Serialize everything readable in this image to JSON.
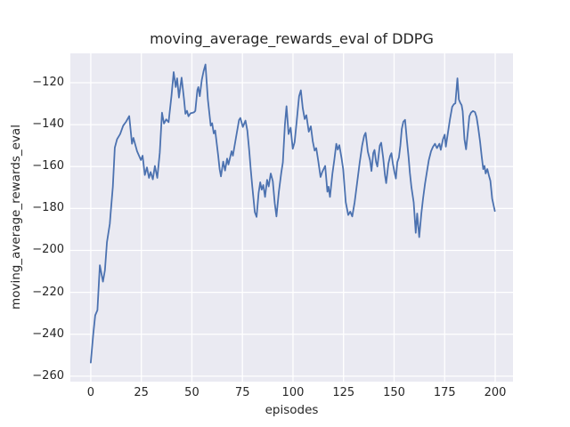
{
  "figure": {
    "title": "moving_average_rewards_eval of DDPG",
    "xlabel": "episodes",
    "ylabel": "moving_average_rewards_eval"
  },
  "colors": {
    "figure_bg": "#ffffff",
    "axes_bg": "#eaeaf2",
    "grid": "#ffffff",
    "text": "#262626",
    "line": "#4c72b0"
  },
  "chart_data": {
    "type": "line",
    "title": "moving_average_rewards_eval of DDPG",
    "xlabel": "episodes",
    "ylabel": "moving_average_rewards_eval",
    "xlim": [
      -10.1,
      208.8
    ],
    "ylim": [
      -262.6,
      -106.0
    ],
    "x_ticks": [
      0,
      25,
      50,
      75,
      100,
      125,
      150,
      175,
      200
    ],
    "y_ticks": [
      -260,
      -240,
      -220,
      -200,
      -180,
      -160,
      -140,
      -120
    ],
    "grid": true,
    "legend": false,
    "series": [
      {
        "name": "moving_average_rewards_eval",
        "color": "#4c72b0",
        "points": [
          [
            0,
            -253.5
          ],
          [
            1.2,
            -240
          ],
          [
            2.2,
            -231
          ],
          [
            3.3,
            -228.5
          ],
          [
            4.5,
            -207.1
          ],
          [
            6,
            -214.9
          ],
          [
            7,
            -209.5
          ],
          [
            8,
            -196
          ],
          [
            9.4,
            -187.3
          ],
          [
            9.8,
            -182.4
          ],
          [
            10.9,
            -169.6
          ],
          [
            11.9,
            -151
          ],
          [
            13,
            -147
          ],
          [
            14.5,
            -144.5
          ],
          [
            16,
            -140.5
          ],
          [
            17.5,
            -138.5
          ],
          [
            19,
            -135.9
          ],
          [
            20.4,
            -149.1
          ],
          [
            21.1,
            -146.3
          ],
          [
            22.9,
            -152.7
          ],
          [
            24.8,
            -156.9
          ],
          [
            25.6,
            -154.8
          ],
          [
            26.7,
            -164
          ],
          [
            27.8,
            -160.4
          ],
          [
            28.8,
            -165.4
          ],
          [
            29.6,
            -162.6
          ],
          [
            30.7,
            -166.1
          ],
          [
            31.7,
            -159.7
          ],
          [
            32.9,
            -165.4
          ],
          [
            34.1,
            -153.4
          ],
          [
            35.2,
            -134.3
          ],
          [
            36.2,
            -139.5
          ],
          [
            37.3,
            -137.5
          ],
          [
            38.5,
            -138.8
          ],
          [
            39.9,
            -126.4
          ],
          [
            41,
            -114.9
          ],
          [
            42,
            -122.1
          ],
          [
            42.7,
            -117.9
          ],
          [
            43.6,
            -127.1
          ],
          [
            44.9,
            -117.6
          ],
          [
            46.1,
            -127.8
          ],
          [
            46.8,
            -134.8
          ],
          [
            47.6,
            -133.4
          ],
          [
            48.3,
            -136
          ],
          [
            49.3,
            -134.6
          ],
          [
            51,
            -134.2
          ],
          [
            51.7,
            -133.4
          ],
          [
            52.7,
            -123.5
          ],
          [
            53.2,
            -122.1
          ],
          [
            53.9,
            -126.4
          ],
          [
            54.9,
            -118.6
          ],
          [
            55.8,
            -114.5
          ],
          [
            56.7,
            -111.3
          ],
          [
            57.9,
            -128
          ],
          [
            59.3,
            -140.5
          ],
          [
            60,
            -139.3
          ],
          [
            60.8,
            -144.2
          ],
          [
            61.5,
            -142.8
          ],
          [
            63,
            -154.8
          ],
          [
            63.7,
            -161.2
          ],
          [
            64.4,
            -164.7
          ],
          [
            65.5,
            -157.6
          ],
          [
            66.4,
            -161.9
          ],
          [
            67.4,
            -156.2
          ],
          [
            68.1,
            -159
          ],
          [
            69.6,
            -152.7
          ],
          [
            70.3,
            -154.8
          ],
          [
            71.8,
            -146.3
          ],
          [
            73.3,
            -137.8
          ],
          [
            74,
            -136.8
          ],
          [
            75.2,
            -141.1
          ],
          [
            76.5,
            -138.1
          ],
          [
            77.4,
            -142.8
          ],
          [
            78.4,
            -152.7
          ],
          [
            79.1,
            -161.2
          ],
          [
            79.9,
            -169.6
          ],
          [
            81.1,
            -181.7
          ],
          [
            82,
            -184
          ],
          [
            83,
            -172.5
          ],
          [
            83.8,
            -167.5
          ],
          [
            84.5,
            -171
          ],
          [
            85.3,
            -168.8
          ],
          [
            86.2,
            -174.5
          ],
          [
            87.2,
            -166.3
          ],
          [
            88,
            -169.5
          ],
          [
            89,
            -163.3
          ],
          [
            90,
            -167
          ],
          [
            91,
            -177.5
          ],
          [
            91.8,
            -183.8
          ],
          [
            93,
            -172
          ],
          [
            94.2,
            -163
          ],
          [
            95,
            -158
          ],
          [
            96,
            -140
          ],
          [
            96.8,
            -131.2
          ],
          [
            97.8,
            -144.5
          ],
          [
            98.8,
            -141.5
          ],
          [
            99.9,
            -151.5
          ],
          [
            100.8,
            -148.3
          ],
          [
            101.8,
            -138.5
          ],
          [
            103,
            -126.5
          ],
          [
            103.9,
            -123.6
          ],
          [
            104.8,
            -132
          ],
          [
            105.8,
            -137.3
          ],
          [
            106.6,
            -135.5
          ],
          [
            107.8,
            -143.4
          ],
          [
            108.8,
            -140.8
          ],
          [
            109.8,
            -148
          ],
          [
            110.7,
            -152.4
          ],
          [
            111.5,
            -151.2
          ],
          [
            112.5,
            -157.5
          ],
          [
            113.6,
            -165
          ],
          [
            114.5,
            -162.5
          ],
          [
            115.9,
            -159.7
          ],
          [
            117,
            -172
          ],
          [
            117.6,
            -169.6
          ],
          [
            118.3,
            -174.5
          ],
          [
            119.5,
            -163.5
          ],
          [
            120.4,
            -157
          ],
          [
            121.4,
            -149.1
          ],
          [
            122.1,
            -151.9
          ],
          [
            122.9,
            -149.8
          ],
          [
            124,
            -156
          ],
          [
            124.8,
            -161.2
          ],
          [
            126.1,
            -177
          ],
          [
            127.3,
            -183.1
          ],
          [
            128.3,
            -181.5
          ],
          [
            129.3,
            -183.8
          ],
          [
            130.5,
            -177
          ],
          [
            131.8,
            -167
          ],
          [
            133,
            -158
          ],
          [
            134.2,
            -150
          ],
          [
            135.2,
            -145.3
          ],
          [
            135.9,
            -143.9
          ],
          [
            137,
            -152.9
          ],
          [
            138.1,
            -157.1
          ],
          [
            138.8,
            -162.1
          ],
          [
            139.7,
            -153.6
          ],
          [
            140.3,
            -152.1
          ],
          [
            141.1,
            -157.9
          ],
          [
            141.7,
            -160
          ],
          [
            142.9,
            -150
          ],
          [
            143.6,
            -148.6
          ],
          [
            144.6,
            -155.7
          ],
          [
            145.5,
            -164.3
          ],
          [
            146.1,
            -167.9
          ],
          [
            147.2,
            -158.6
          ],
          [
            148,
            -155
          ],
          [
            148.7,
            -153.6
          ],
          [
            149.4,
            -158.6
          ],
          [
            150.2,
            -162.9
          ],
          [
            150.9,
            -165.7
          ],
          [
            151.6,
            -157.9
          ],
          [
            152.4,
            -155.7
          ],
          [
            153.1,
            -150
          ],
          [
            153.8,
            -142.1
          ],
          [
            154.6,
            -138.6
          ],
          [
            155.4,
            -137.7
          ],
          [
            156.3,
            -147.1
          ],
          [
            157.2,
            -155.7
          ],
          [
            157.8,
            -162.9
          ],
          [
            158.6,
            -170
          ],
          [
            159.7,
            -177.1
          ],
          [
            160.7,
            -191.6
          ],
          [
            161.4,
            -182.4
          ],
          [
            162.4,
            -193.7
          ],
          [
            163.5,
            -182.4
          ],
          [
            164.3,
            -175.3
          ],
          [
            165.3,
            -168.2
          ],
          [
            166.2,
            -162.6
          ],
          [
            167.2,
            -156.9
          ],
          [
            168.3,
            -152.7
          ],
          [
            169.2,
            -150.6
          ],
          [
            170.2,
            -149.1
          ],
          [
            171.2,
            -151.2
          ],
          [
            172.4,
            -149.1
          ],
          [
            173.1,
            -152
          ],
          [
            174.2,
            -146.9
          ],
          [
            175,
            -144.8
          ],
          [
            175.6,
            -150.5
          ],
          [
            176.6,
            -144
          ],
          [
            177.6,
            -137.5
          ],
          [
            178.7,
            -131.5
          ],
          [
            179.5,
            -130.3
          ],
          [
            180.3,
            -129.8
          ],
          [
            181.3,
            -117.9
          ],
          [
            182,
            -128
          ],
          [
            182.7,
            -129.5
          ],
          [
            183.4,
            -130.7
          ],
          [
            183.9,
            -133.6
          ],
          [
            184.8,
            -147
          ],
          [
            185.6,
            -151.8
          ],
          [
            186.5,
            -143
          ],
          [
            187.2,
            -136
          ],
          [
            188,
            -134.3
          ],
          [
            189,
            -133.5
          ],
          [
            190,
            -134
          ],
          [
            190.8,
            -136.4
          ],
          [
            191.6,
            -141.3
          ],
          [
            192.5,
            -148
          ],
          [
            193.3,
            -155
          ],
          [
            194.1,
            -161.2
          ],
          [
            194.7,
            -159.7
          ],
          [
            195.3,
            -163.3
          ],
          [
            196.1,
            -161.2
          ],
          [
            197,
            -164.7
          ],
          [
            197.6,
            -166.8
          ],
          [
            198.5,
            -175.3
          ],
          [
            199.8,
            -181.2
          ]
        ]
      }
    ]
  }
}
